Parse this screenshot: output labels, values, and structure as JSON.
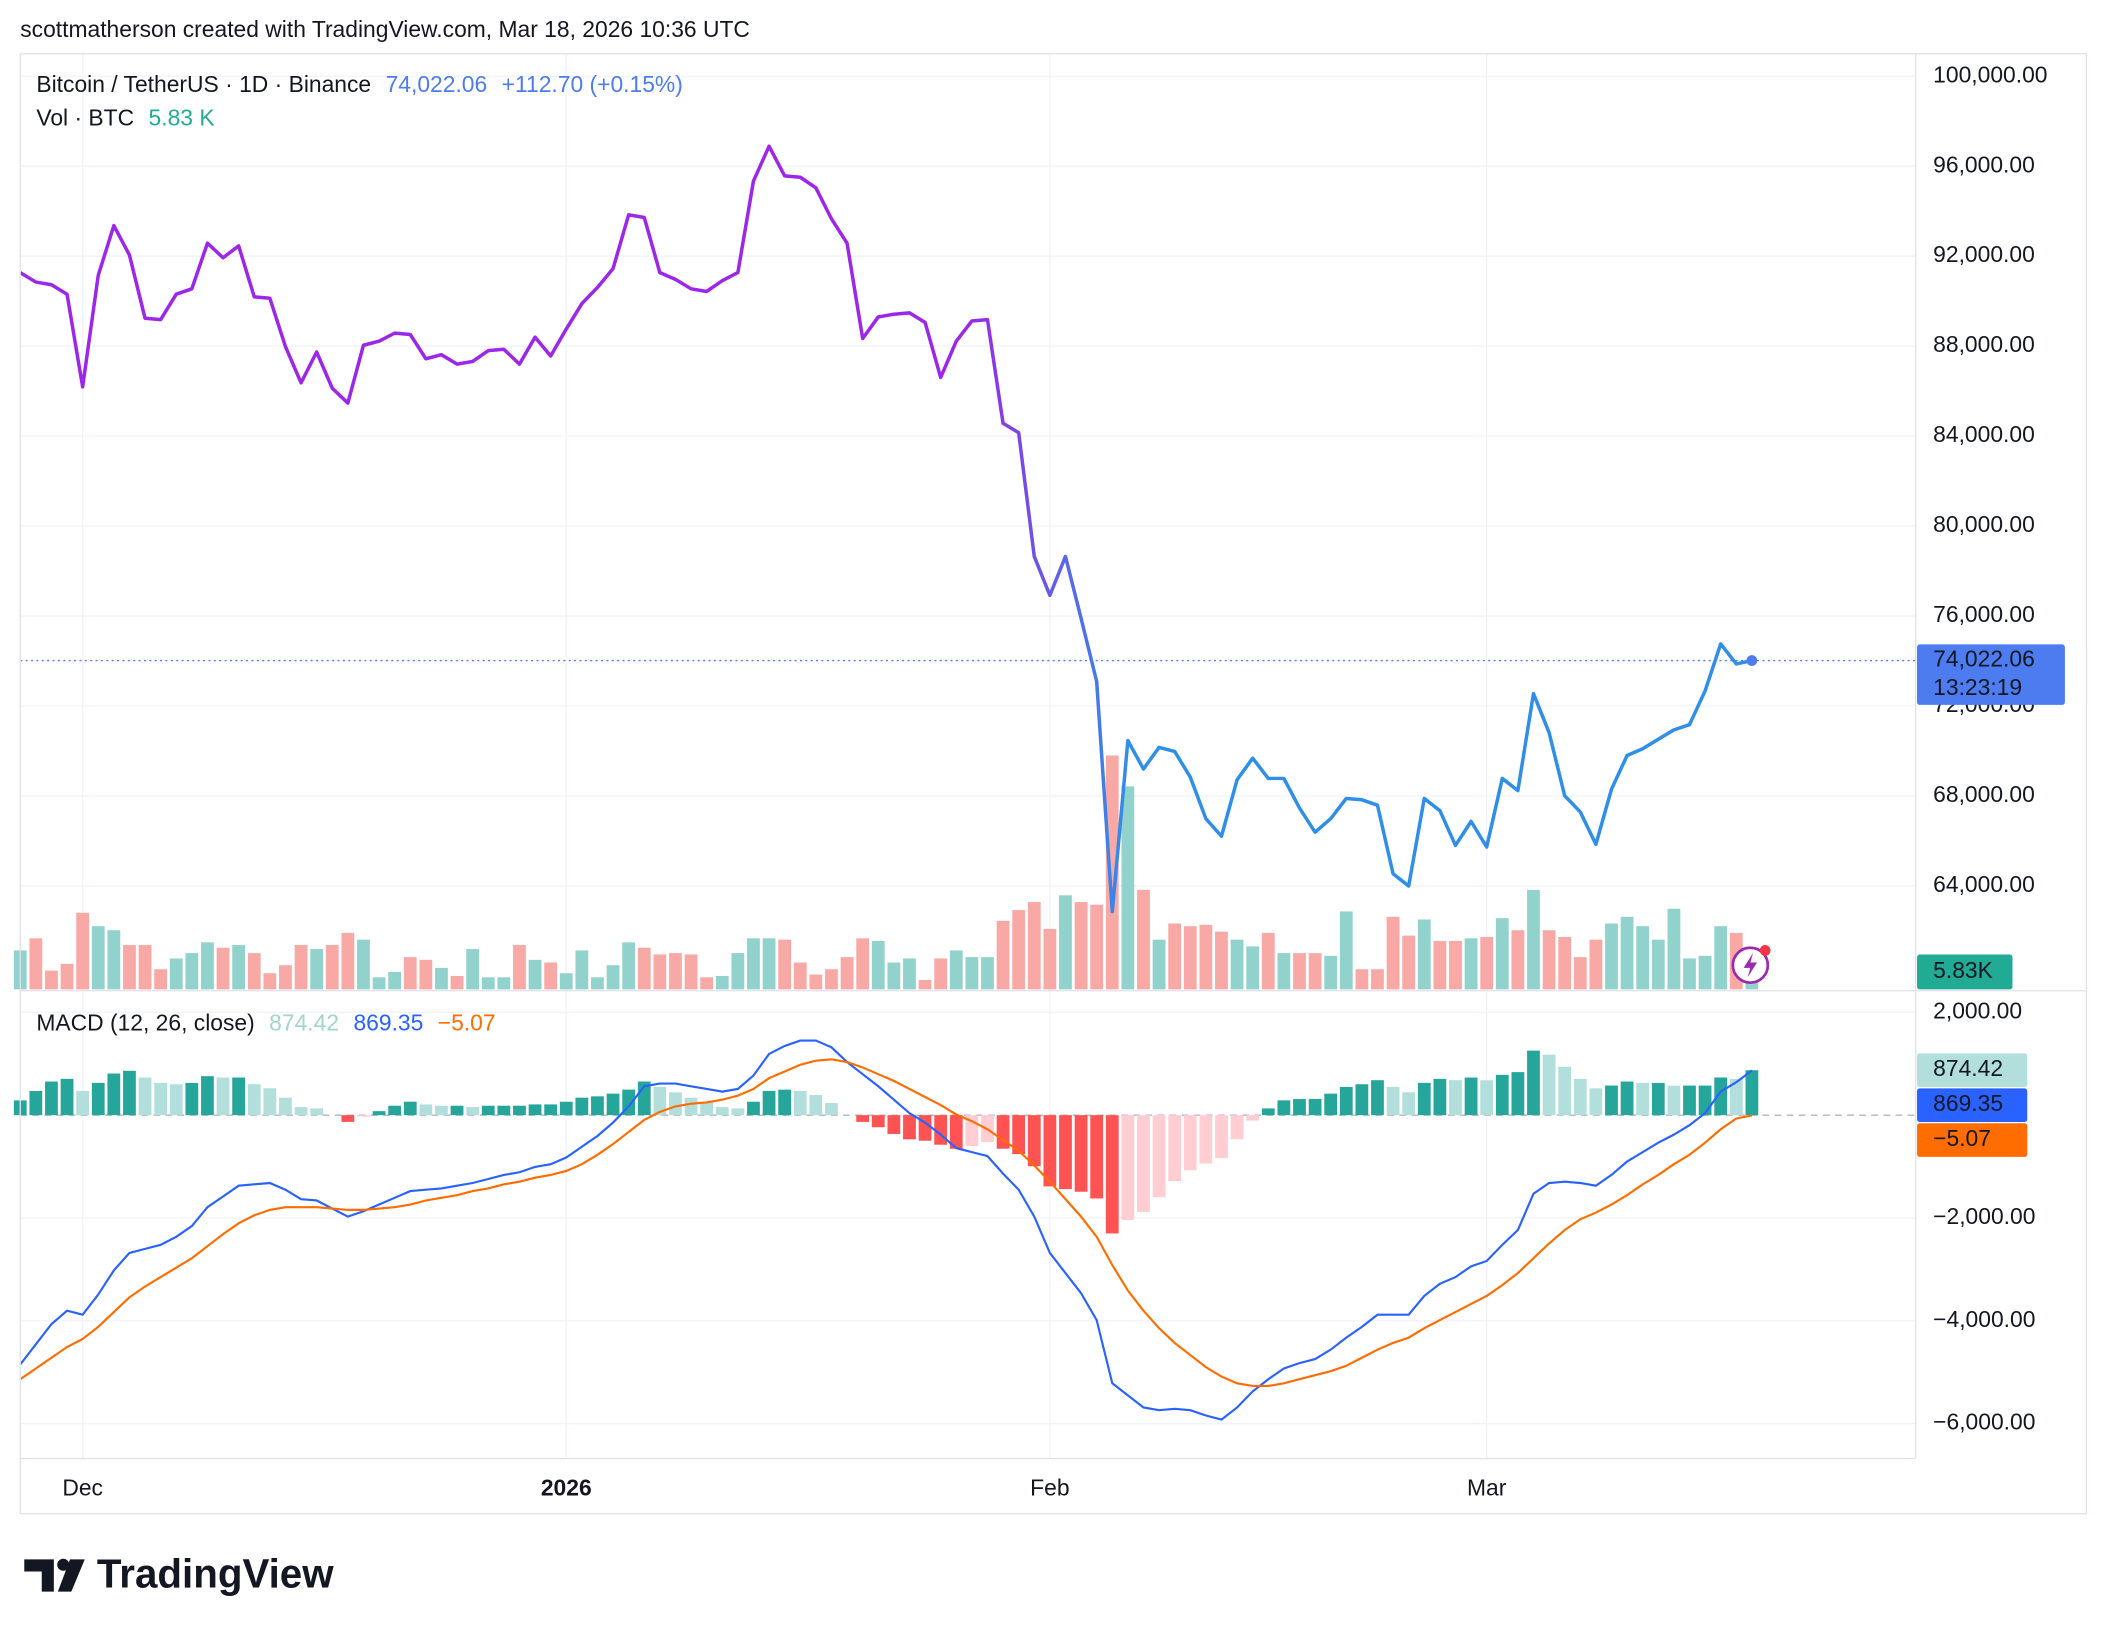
{
  "header": "scottmatherson created with TradingView.com, Mar 18, 2026 10:36 UTC",
  "footer": "TradingView",
  "chart_data": [
    {
      "type": "line",
      "title": "Bitcoin / TetherUS · 1D · Binance",
      "last_label": "74,022.06",
      "change_label": "+112.70 (+0.15%)",
      "countdown": "13:23:19",
      "color": "#4c7cf0",
      "gradient": [
        "#9c27e8",
        "#2f8fe8"
      ],
      "xlim": [
        0,
        121.5
      ],
      "xticks": [
        {
          "value": 4,
          "label": "Dec"
        },
        {
          "value": 35,
          "label": "2026",
          "bold": true
        },
        {
          "value": 66,
          "label": "Feb"
        },
        {
          "value": 94,
          "label": "Mar"
        }
      ],
      "ylim": [
        59400,
        101000
      ],
      "yticks": [
        {
          "value": 64000,
          "label": "64,000.00"
        },
        {
          "value": 68000,
          "label": "68,000.00"
        },
        {
          "value": 72000,
          "label": "72,000.00"
        },
        {
          "value": 76000,
          "label": "76,000.00"
        },
        {
          "value": 80000,
          "label": "80,000.00"
        },
        {
          "value": 84000,
          "label": "84,000.00"
        },
        {
          "value": 88000,
          "label": "88,000.00"
        },
        {
          "value": 92000,
          "label": "92,000.00"
        },
        {
          "value": 96000,
          "label": "96,000.00"
        },
        {
          "value": 100000,
          "label": "100,000.00"
        }
      ],
      "grid": true,
      "values": [
        91270,
        90850,
        90730,
        90310,
        86190,
        91150,
        93360,
        92050,
        89240,
        89180,
        90310,
        90550,
        92580,
        91930,
        92460,
        90190,
        90130,
        87980,
        86370,
        87740,
        86130,
        85470,
        88040,
        88220,
        88580,
        88520,
        87440,
        87620,
        87200,
        87320,
        87800,
        87860,
        87200,
        88400,
        87560,
        88760,
        89890,
        90610,
        91450,
        93840,
        93720,
        91270,
        90970,
        90550,
        90430,
        90910,
        91270,
        95340,
        96890,
        95570,
        95510,
        95040,
        93660,
        92580,
        88340,
        89300,
        89420,
        89480,
        89060,
        86610,
        88220,
        89120,
        89180,
        84570,
        84150,
        78650,
        76920,
        78650,
        75900,
        73090,
        62860,
        70460,
        69200,
        70160,
        69980,
        68840,
        66990,
        66210,
        68720,
        69680,
        68780,
        68780,
        67470,
        66390,
        66990,
        67890,
        67830,
        67590,
        64540,
        64000,
        67890,
        67350,
        65800,
        66870,
        65730,
        68780,
        68240,
        72550,
        70820,
        68010,
        67290,
        65850,
        68300,
        69800,
        70100,
        70520,
        70940,
        71170,
        72670,
        74760,
        73870,
        74022.06
      ]
    },
    {
      "type": "bar",
      "title": "Vol · BTC",
      "last_label": "5.83 K",
      "badge_label": "5.83K",
      "color": "#22ab94",
      "up_color": "#92d2cc",
      "down_color": "#f8a9a6",
      "xlim": [
        0,
        121.5
      ],
      "ylim": [
        0,
        417.6
      ],
      "values": [
        17.4,
        22.8,
        8.4,
        11.4,
        34.2,
        28.2,
        26.4,
        19.8,
        19.8,
        9,
        13.8,
        16.2,
        21,
        18.6,
        19.8,
        16.2,
        7.2,
        10.8,
        19.8,
        18,
        19.8,
        25.2,
        22.2,
        5.4,
        7.8,
        14.4,
        13.2,
        9.6,
        6,
        18,
        5.4,
        5.4,
        19.8,
        13.2,
        12,
        7.2,
        17.4,
        5.4,
        10.8,
        21,
        18.6,
        15.6,
        16.2,
        15.6,
        5.4,
        6,
        16.2,
        22.8,
        22.8,
        22.2,
        12,
        6.6,
        9,
        14.4,
        22.8,
        21.6,
        12,
        13.8,
        4.2,
        13.8,
        17.4,
        14.4,
        14.4,
        30.6,
        35.4,
        39,
        27,
        42,
        39,
        37.8,
        104.4,
        90.6,
        44.4,
        22.2,
        29.4,
        28.2,
        28.8,
        25.8,
        22.2,
        19.2,
        25.2,
        16.2,
        16.2,
        16.2,
        15,
        34.8,
        9,
        9,
        32.4,
        24,
        31.2,
        21.6,
        21.6,
        22.8,
        23.4,
        31.8,
        26.4,
        44.4,
        26.4,
        23.4,
        14.4,
        22.2,
        29.4,
        32.4,
        28.2,
        22.2,
        36,
        13.8,
        15,
        28.2,
        25.2,
        5.83
      ]
    },
    {
      "type": "macd",
      "title": "MACD (12, 26, close)",
      "xlim": [
        0,
        121.5
      ],
      "ylim": [
        -6680,
        2420
      ],
      "yticks": [
        {
          "value": -6000,
          "label": "−6,000.00"
        },
        {
          "value": -4000,
          "label": "−4,000.00"
        },
        {
          "value": -2000,
          "label": "−2,000.00"
        },
        {
          "value": 2000,
          "label": "2,000.00"
        }
      ],
      "grid": true,
      "zero_line": true,
      "series": [
        {
          "kind": "histogram",
          "last_label": "874.42",
          "badge_color": "#b2dfdb",
          "text_color": "#a2d4ce",
          "colors": {
            "up_strong": "#26a69a",
            "up_weak": "#b2dfdb",
            "down_weak": "#ffcdd2",
            "down_strong": "#ff5252"
          },
          "values": [
            287,
            470,
            654,
            706,
            471,
            628,
            810,
            863,
            732,
            627,
            601,
            627,
            758,
            732,
            732,
            602,
            523,
            340,
            157,
            131,
            0,
            -131,
            -26,
            78,
            183,
            262,
            209,
            183,
            183,
            157,
            183,
            183,
            183,
            209,
            209,
            261,
            340,
            366,
            418,
            497,
            654,
            549,
            444,
            340,
            262,
            157,
            131,
            261,
            471,
            496,
            471,
            392,
            235,
            0,
            -131,
            -235,
            -366,
            -471,
            -497,
            -575,
            -654,
            -601,
            -522,
            -653,
            -758,
            -994,
            -1386,
            -1438,
            -1490,
            -1621,
            -2301,
            -2039,
            -1882,
            -1595,
            -1281,
            -1072,
            -941,
            -837,
            -470,
            -105,
            131,
            288,
            313,
            314,
            418,
            549,
            601,
            680,
            549,
            445,
            628,
            706,
            680,
            732,
            679,
            784,
            837,
            1255,
            1177,
            941,
            706,
            522,
            576,
            654,
            627,
            627,
            575,
            575,
            575,
            733,
            706,
            874.42
          ]
        },
        {
          "kind": "line",
          "last_label": "869.35",
          "color": "#2962ff",
          "values": [
            -4850,
            -4458,
            -4065,
            -3804,
            -3882,
            -3490,
            -3020,
            -2680,
            -2601,
            -2523,
            -2366,
            -2157,
            -1791,
            -1582,
            -1373,
            -1346,
            -1320,
            -1451,
            -1634,
            -1660,
            -1817,
            -1974,
            -1869,
            -1739,
            -1608,
            -1477,
            -1451,
            -1425,
            -1373,
            -1320,
            -1242,
            -1163,
            -1111,
            -1007,
            -954,
            -824,
            -614,
            -405,
            -144,
            170,
            562,
            614,
            614,
            562,
            510,
            458,
            510,
            771,
            1190,
            1346,
            1451,
            1451,
            1320,
            1033,
            797,
            562,
            301,
            39,
            -144,
            -379,
            -641,
            -719,
            -797,
            -1137,
            -1451,
            -1974,
            -2680,
            -3072,
            -3464,
            -3987,
            -5216,
            -5451,
            -5686,
            -5739,
            -5712,
            -5739,
            -5843,
            -5922,
            -5686,
            -5373,
            -5137,
            -4928,
            -4824,
            -4745,
            -4562,
            -4327,
            -4118,
            -3882,
            -3882,
            -3882,
            -3516,
            -3281,
            -3150,
            -2941,
            -2837,
            -2523,
            -2235,
            -1529,
            -1320,
            -1294,
            -1320,
            -1373,
            -1163,
            -902,
            -719,
            -536,
            -379,
            -196,
            39,
            458,
            641,
            869.35
          ]
        },
        {
          "kind": "line",
          "last_label": "−5.07",
          "color": "#ff6d00",
          "values": [
            -5137,
            -4928,
            -4719,
            -4510,
            -4353,
            -4118,
            -3830,
            -3543,
            -3333,
            -3150,
            -2967,
            -2784,
            -2549,
            -2314,
            -2105,
            -1948,
            -1843,
            -1791,
            -1791,
            -1791,
            -1817,
            -1843,
            -1843,
            -1817,
            -1791,
            -1739,
            -1660,
            -1608,
            -1556,
            -1477,
            -1425,
            -1346,
            -1294,
            -1216,
            -1163,
            -1085,
            -954,
            -771,
            -562,
            -327,
            -92,
            65,
            170,
            222,
            248,
            301,
            379,
            510,
            719,
            850,
            980,
            1059,
            1085,
            1033,
            928,
            797,
            667,
            510,
            353,
            196,
            13,
            -118,
            -275,
            -484,
            -693,
            -980,
            -1294,
            -1634,
            -1974,
            -2366,
            -2915,
            -3412,
            -3804,
            -4144,
            -4431,
            -4667,
            -4902,
            -5085,
            -5216,
            -5268,
            -5268,
            -5216,
            -5137,
            -5059,
            -4980,
            -4876,
            -4719,
            -4562,
            -4431,
            -4327,
            -4144,
            -3987,
            -3830,
            -3673,
            -3516,
            -3307,
            -3072,
            -2784,
            -2497,
            -2235,
            -2026,
            -1895,
            -1739,
            -1556,
            -1346,
            -1163,
            -954,
            -771,
            -536,
            -275,
            -65,
            -5.07
          ]
        }
      ]
    }
  ]
}
